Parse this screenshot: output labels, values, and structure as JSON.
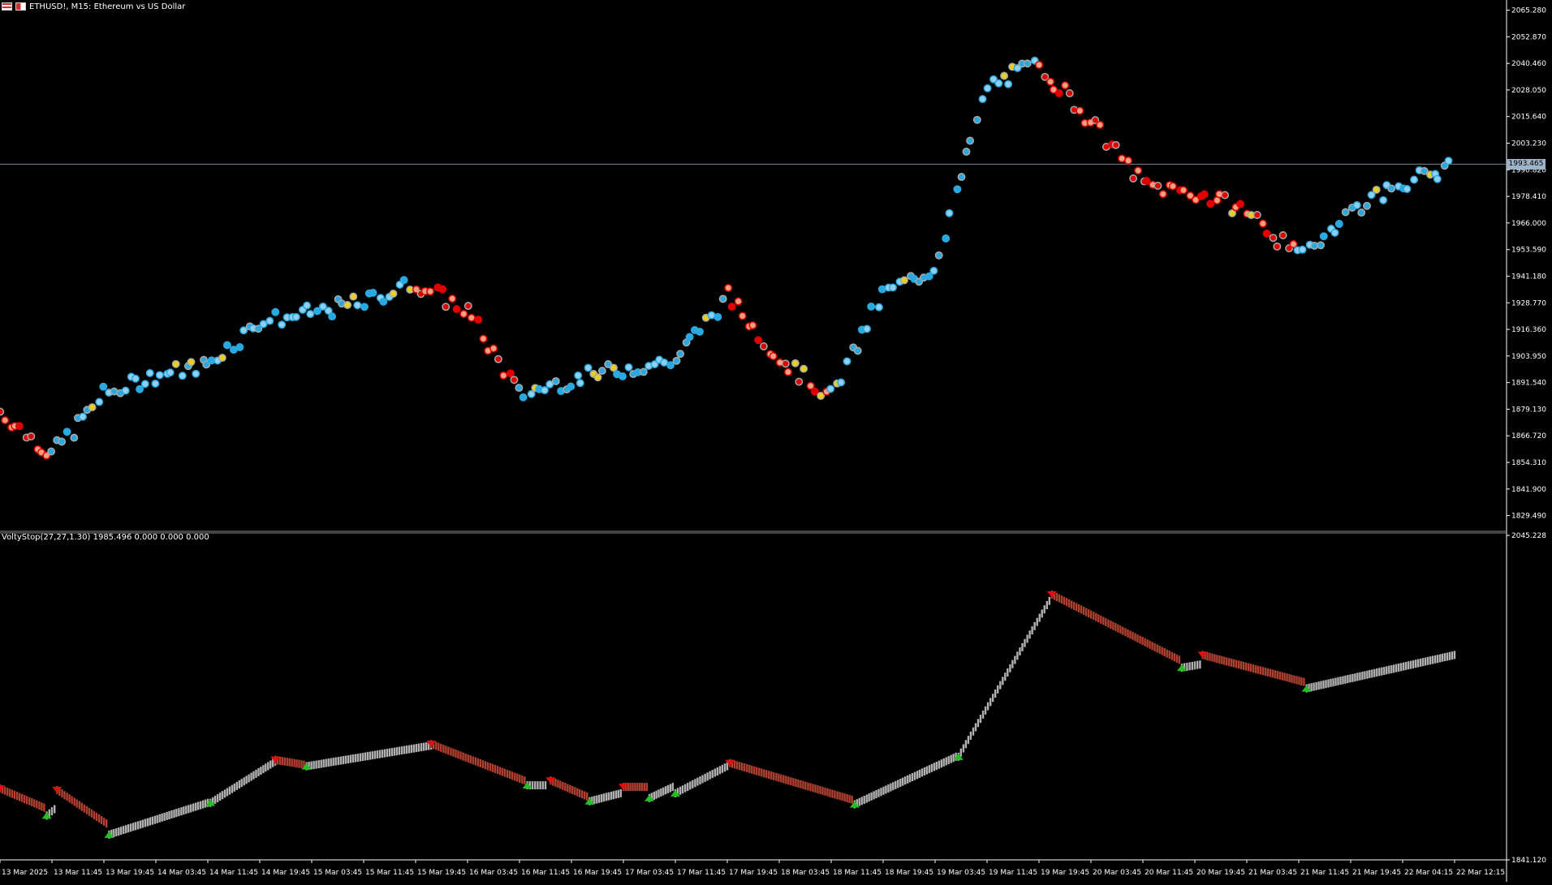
{
  "window": {
    "title": "ETHUSD!, M15:  Ethereum vs US Dollar"
  },
  "indicator": {
    "title": "VoltyStop(27,27,1.30) 1985.496 0.000 0.000 0.000"
  },
  "current_price_label": "1993.465",
  "colors": {
    "background": "#000000",
    "axis": "#ffffff",
    "bull_dot": "#29a9e0",
    "bull_dot_light": "#8fd0f0",
    "bear_dot": "#e00000",
    "bear_dot_light": "#f0a080",
    "neutral_dot": "#a8a8a8",
    "highlight_dot": "#e8d020",
    "stop_up": "#b0b0b0",
    "stop_down": "#b04030",
    "arrow_up": "#22c022",
    "arrow_down": "#e01010",
    "price_line": "#6e8aa0"
  },
  "chart_data": [
    {
      "type": "scatter",
      "title": "ETHUSD!, M15:  Ethereum vs US Dollar",
      "x": [
        "13 Mar 2025",
        "13 Mar 11:45",
        "13 Mar 19:45",
        "14 Mar 03:45",
        "14 Mar 11:45",
        "14 Mar 19:45",
        "15 Mar 03:45",
        "15 Mar 11:45",
        "15 Mar 19:45",
        "16 Mar 03:45",
        "16 Mar 11:45",
        "16 Mar 19:45",
        "17 Mar 03:45",
        "17 Mar 11:45",
        "17 Mar 19:45",
        "18 Mar 03:45",
        "18 Mar 11:45",
        "18 Mar 19:45",
        "19 Mar 03:45",
        "19 Mar 11:45",
        "19 Mar 19:45",
        "20 Mar 03:45",
        "20 Mar 11:45",
        "20 Mar 19:45",
        "21 Mar 03:45",
        "21 Mar 11:45",
        "21 Mar 19:45",
        "22 Mar 04:15",
        "22 Mar 12:15"
      ],
      "series": [
        {
          "values": [
            1878,
            1858,
            1886,
            1895,
            1900,
            1920,
            1924,
            1929,
            1938,
            1925,
            1886,
            1893,
            1898,
            1902,
            1932,
            1903,
            1885,
            1933,
            1945,
            2030,
            2040,
            2014,
            1984,
            1980,
            1972,
            1950,
            1972,
            1985,
            1992
          ]
        }
      ],
      "tick_labels": [
        "1829.490",
        "1841.900",
        "1854.310",
        "1866.720",
        "1879.130",
        "1891.540",
        "1903.950",
        "1916.360",
        "1928.770",
        "1941.180",
        "1953.590",
        "1966.000",
        "1978.410",
        "1990.820",
        "2003.230",
        "2015.640",
        "2028.050",
        "2040.460",
        "2052.870",
        "2065.280"
      ],
      "ylim": [
        1823.285,
        2067.76
      ],
      "current_price": 1993.465
    },
    {
      "type": "line",
      "title": "VoltyStop(27,27,1.30) 1985.496 0.000 0.000 0.000",
      "x": [
        "13 Mar 2025",
        "13 Mar 11:45",
        "13 Mar 19:45",
        "14 Mar 03:45",
        "14 Mar 11:45",
        "14 Mar 19:45",
        "15 Mar 03:45",
        "15 Mar 11:45",
        "15 Mar 19:45",
        "16 Mar 03:45",
        "16 Mar 11:45",
        "16 Mar 19:45",
        "17 Mar 03:45",
        "17 Mar 11:45",
        "17 Mar 19:45",
        "18 Mar 03:45",
        "18 Mar 11:45",
        "18 Mar 19:45",
        "19 Mar 03:45",
        "19 Mar 11:45",
        "19 Mar 19:45",
        "20 Mar 03:45",
        "20 Mar 11:45",
        "20 Mar 19:45",
        "21 Mar 03:45",
        "21 Mar 11:45",
        "21 Mar 19:45",
        "22 Mar 04:15",
        "22 Mar 12:15"
      ],
      "segments": [
        {
          "trend": "down",
          "x_start": 0,
          "x_end": 0.85,
          "y_start": 1886,
          "y_end": 1874
        },
        {
          "trend": "up",
          "x_start": 0.9,
          "x_end": 1.05,
          "y_start": 1869,
          "y_end": 1873
        },
        {
          "trend": "down",
          "x_start": 1.1,
          "x_end": 2.05,
          "y_start": 1885,
          "y_end": 1864
        },
        {
          "trend": "up",
          "x_start": 2.1,
          "x_end": 4.0,
          "y_start": 1857,
          "y_end": 1877
        },
        {
          "trend": "up",
          "x_start": 4.05,
          "x_end": 5.3,
          "y_start": 1877,
          "y_end": 1903
        },
        {
          "trend": "down",
          "x_start": 5.3,
          "x_end": 5.85,
          "y_start": 1904,
          "y_end": 1901
        },
        {
          "trend": "up",
          "x_start": 5.9,
          "x_end": 8.3,
          "y_start": 1900,
          "y_end": 1913
        },
        {
          "trend": "down",
          "x_start": 8.3,
          "x_end": 10.1,
          "y_start": 1914,
          "y_end": 1891
        },
        {
          "trend": "up",
          "x_start": 10.15,
          "x_end": 10.5,
          "y_start": 1888,
          "y_end": 1888
        },
        {
          "trend": "down",
          "x_start": 10.6,
          "x_end": 11.3,
          "y_start": 1891,
          "y_end": 1881
        },
        {
          "trend": "up",
          "x_start": 11.35,
          "x_end": 11.95,
          "y_start": 1878,
          "y_end": 1883
        },
        {
          "trend": "down",
          "x_start": 12.0,
          "x_end": 12.45,
          "y_start": 1887,
          "y_end": 1887
        },
        {
          "trend": "up",
          "x_start": 12.5,
          "x_end": 12.95,
          "y_start": 1880,
          "y_end": 1887
        },
        {
          "trend": "up",
          "x_start": 13.0,
          "x_end": 14.0,
          "y_start": 1883,
          "y_end": 1900
        },
        {
          "trend": "down",
          "x_start": 14.05,
          "x_end": 16.4,
          "y_start": 1902,
          "y_end": 1879
        },
        {
          "trend": "up",
          "x_start": 16.45,
          "x_end": 18.4,
          "y_start": 1876,
          "y_end": 1906
        },
        {
          "trend": "up",
          "x_start": 18.45,
          "x_end": 20.2,
          "y_start": 1906,
          "y_end": 2004
        },
        {
          "trend": "down",
          "x_start": 20.25,
          "x_end": 22.7,
          "y_start": 2008,
          "y_end": 1967
        },
        {
          "trend": "up",
          "x_start": 22.75,
          "x_end": 23.1,
          "y_start": 1962,
          "y_end": 1964
        },
        {
          "trend": "down",
          "x_start": 23.15,
          "x_end": 25.1,
          "y_start": 1970,
          "y_end": 1953
        },
        {
          "trend": "up",
          "x_start": 25.15,
          "x_end": 28.0,
          "y_start": 1949,
          "y_end": 1970
        }
      ],
      "tick_labels": [
        "1841.120",
        "2045.228"
      ],
      "ylim": [
        1841.12,
        2045.228
      ]
    }
  ]
}
